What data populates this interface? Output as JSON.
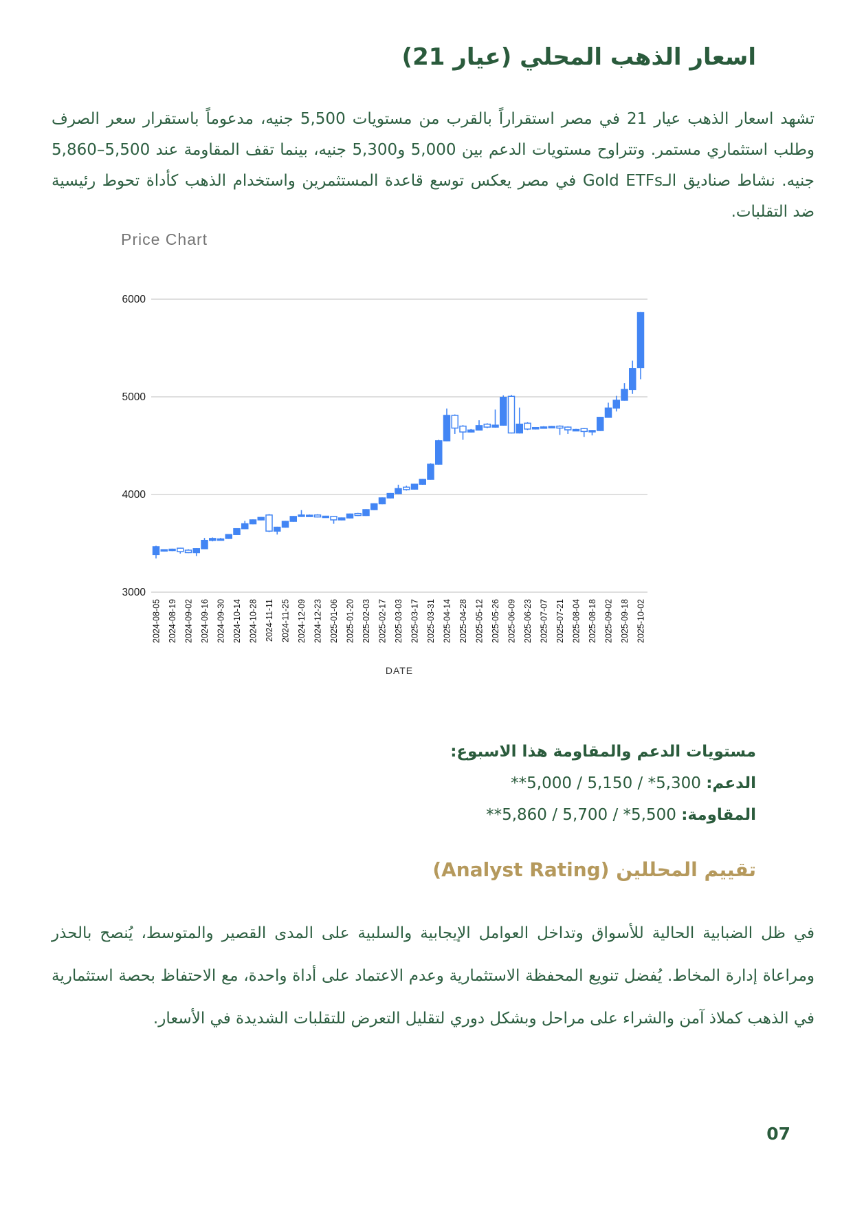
{
  "page": {
    "number": "07"
  },
  "header": {
    "title": "اسعار الذهب المحلي (عيار 21)"
  },
  "intro_paragraph": "تشهد اسعار الذهب عيار 21 في مصر استقراراً بالقرب من مستويات 5,500 جنيه، مدعوماً باستقرار سعر الصرف وطلب استثماري مستمر. وتتراوح مستويات الدعم بين 5,000 و5,300 جنيه، بينما تقف المقاومة عند 5,500–5,860 جنيه. نشاط صناديق الـGold ETFs في مصر يعكس توسع قاعدة المستثمرين واستخدام الذهب كأداة تحوط رئيسية ضد التقلبات.",
  "support_resistance": {
    "heading": "مستويات الدعم والمقاومة هذا الاسبوع:",
    "support_label": "الدعم:",
    "support_values": "**5,000 / 5,150 / *5,300",
    "resistance_label": "المقاومة:",
    "resistance_values": "**5,860 / 5,700 / *5,500"
  },
  "analyst_rating": {
    "heading": "تقييم المحللين (Analyst Rating)",
    "paragraph": "في ظل الضبابية الحالية للأسواق وتداخل العوامل الإيجابية والسلبية على المدى القصير والمتوسط، يُنصح بالحذر ومراعاة إدارة المخاط. يُفضل تنويع المحفظة الاستثمارية وعدم الاعتماد على أداة واحدة، مع الاحتفاظ بحصة استثمارية في الذهب كملاذ آمن والشراء على مراحل وبشكل دوري لتقليل التعرض للتقلبات الشديدة في الأسعار."
  },
  "chart_data": {
    "type": "candlestick",
    "title": "Price Chart",
    "xlabel": "DATE",
    "ylabel": "",
    "ylim": [
      3000,
      6000
    ],
    "yticks": [
      6000,
      5000,
      4000,
      3000
    ],
    "grid": true,
    "candle_color": "#4285f4",
    "gridline_color": "#cccccc",
    "x_tick_labels": [
      "2024-08-05",
      "2024-08-19",
      "2024-09-02",
      "2024-09-16",
      "2024-09-30",
      "2024-10-14",
      "2024-10-28",
      "2024-11-11",
      "2024-11-25",
      "2024-12-09",
      "2024-12-23",
      "2025-01-06",
      "2025-01-20",
      "2025-02-03",
      "2025-02-17",
      "2025-03-03",
      "2025-03-17",
      "2025-03-31",
      "2025-04-14",
      "2025-04-28",
      "2025-05-12",
      "2025-05-26",
      "2025-06-09",
      "2025-06-23",
      "2025-07-07",
      "2025-07-21",
      "2025-08-04",
      "2025-08-18",
      "2025-09-02",
      "2025-09-18",
      "2025-10-02"
    ],
    "note": "weekly candles, labels shown every second candle; values in EGP estimated from gridlines; close<open renders hollow",
    "candles_ohlc": [
      [
        3385,
        3475,
        3345,
        3465
      ],
      [
        3425,
        3440,
        3415,
        3435
      ],
      [
        3430,
        3445,
        3420,
        3440
      ],
      [
        3450,
        3455,
        3395,
        3415
      ],
      [
        3430,
        3440,
        3400,
        3405
      ],
      [
        3405,
        3450,
        3370,
        3445
      ],
      [
        3445,
        3555,
        3440,
        3530
      ],
      [
        3530,
        3560,
        3520,
        3550
      ],
      [
        3540,
        3555,
        3530,
        3545
      ],
      [
        3550,
        3595,
        3545,
        3590
      ],
      [
        3590,
        3655,
        3585,
        3650
      ],
      [
        3650,
        3730,
        3645,
        3700
      ],
      [
        3700,
        3745,
        3695,
        3740
      ],
      [
        3740,
        3770,
        3735,
        3765
      ],
      [
        3790,
        3800,
        3615,
        3625
      ],
      [
        3625,
        3670,
        3590,
        3665
      ],
      [
        3665,
        3730,
        3660,
        3725
      ],
      [
        3725,
        3780,
        3720,
        3775
      ],
      [
        3775,
        3840,
        3770,
        3790
      ],
      [
        3782,
        3795,
        3775,
        3788
      ],
      [
        3790,
        3798,
        3765,
        3770
      ],
      [
        3772,
        3782,
        3765,
        3778
      ],
      [
        3775,
        3780,
        3700,
        3740
      ],
      [
        3740,
        3765,
        3735,
        3760
      ],
      [
        3760,
        3805,
        3755,
        3800
      ],
      [
        3805,
        3812,
        3780,
        3785
      ],
      [
        3785,
        3850,
        3780,
        3845
      ],
      [
        3845,
        3910,
        3840,
        3905
      ],
      [
        3905,
        3970,
        3900,
        3965
      ],
      [
        3965,
        4015,
        3960,
        4010
      ],
      [
        4010,
        4100,
        4005,
        4060
      ],
      [
        4075,
        4090,
        4040,
        4050
      ],
      [
        4055,
        4110,
        4050,
        4105
      ],
      [
        4105,
        4160,
        4100,
        4155
      ],
      [
        4155,
        4320,
        4150,
        4310
      ],
      [
        4310,
        4560,
        4305,
        4550
      ],
      [
        4550,
        4880,
        4545,
        4810
      ],
      [
        4810,
        4820,
        4620,
        4680
      ],
      [
        4700,
        4710,
        4560,
        4640
      ],
      [
        4640,
        4670,
        4635,
        4660
      ],
      [
        4660,
        4760,
        4655,
        4705
      ],
      [
        4720,
        4730,
        4680,
        4690
      ],
      [
        4690,
        4870,
        4685,
        4710
      ],
      [
        4710,
        5015,
        4705,
        4995
      ],
      [
        5005,
        5020,
        4625,
        4630
      ],
      [
        4630,
        4890,
        4625,
        4720
      ],
      [
        4730,
        4740,
        4660,
        4670
      ],
      [
        4672,
        4690,
        4665,
        4685
      ],
      [
        4685,
        4700,
        4680,
        4692
      ],
      [
        4690,
        4702,
        4683,
        4697
      ],
      [
        4700,
        4708,
        4610,
        4680
      ],
      [
        4690,
        4698,
        4620,
        4662
      ],
      [
        4660,
        4672,
        4650,
        4665
      ],
      [
        4675,
        4682,
        4590,
        4645
      ],
      [
        4648,
        4660,
        4605,
        4655
      ],
      [
        4655,
        4795,
        4650,
        4790
      ],
      [
        4790,
        4940,
        4785,
        4885
      ],
      [
        4885,
        5010,
        4850,
        4965
      ],
      [
        4965,
        5140,
        4960,
        5075
      ],
      [
        5075,
        5370,
        5030,
        5290
      ],
      [
        5300,
        5868,
        5180,
        5862
      ]
    ]
  }
}
